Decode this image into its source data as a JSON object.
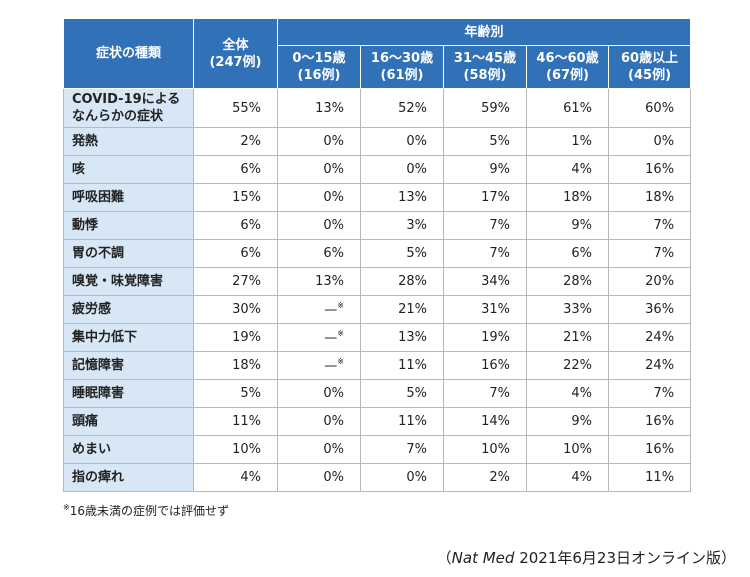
{
  "header": {
    "symptom": "症状の種類",
    "total": {
      "label": "全体",
      "count": "(247例)"
    },
    "age_group": "年齢別",
    "ages": [
      {
        "label": "0〜15歳",
        "count": "(16例)"
      },
      {
        "label": "16〜30歳",
        "count": "(61例)"
      },
      {
        "label": "31〜45歳",
        "count": "(58例)"
      },
      {
        "label": "46〜60歳",
        "count": "(67例)"
      },
      {
        "label": "60歳以上",
        "count": "(45例)"
      }
    ]
  },
  "rows": [
    {
      "symptom": "COVID-19による\nなんらかの症状",
      "values": [
        "55%",
        "13%",
        "52%",
        "59%",
        "61%",
        "60%"
      ]
    },
    {
      "symptom": "発熱",
      "values": [
        "2%",
        "0%",
        "0%",
        "5%",
        "1%",
        "0%"
      ]
    },
    {
      "symptom": "咳",
      "values": [
        "6%",
        "0%",
        "0%",
        "9%",
        "4%",
        "16%"
      ]
    },
    {
      "symptom": "呼吸困難",
      "values": [
        "15%",
        "0%",
        "13%",
        "17%",
        "18%",
        "18%"
      ]
    },
    {
      "symptom": "動悸",
      "values": [
        "6%",
        "0%",
        "3%",
        "7%",
        "9%",
        "7%"
      ]
    },
    {
      "symptom": "胃の不調",
      "values": [
        "6%",
        "6%",
        "5%",
        "7%",
        "6%",
        "7%"
      ]
    },
    {
      "symptom": "嗅覚・味覚障害",
      "values": [
        "27%",
        "13%",
        "28%",
        "34%",
        "28%",
        "20%"
      ]
    },
    {
      "symptom": "疲労感",
      "values": [
        "30%",
        {
          "text": "—",
          "mark": "※"
        },
        "21%",
        "31%",
        "33%",
        "36%"
      ]
    },
    {
      "symptom": "集中力低下",
      "values": [
        "19%",
        {
          "text": "—",
          "mark": "※"
        },
        "13%",
        "19%",
        "21%",
        "24%"
      ]
    },
    {
      "symptom": "記憶障害",
      "values": [
        "18%",
        {
          "text": "—",
          "mark": "※"
        },
        "11%",
        "16%",
        "22%",
        "24%"
      ]
    },
    {
      "symptom": "睡眠障害",
      "values": [
        "5%",
        "0%",
        "5%",
        "7%",
        "4%",
        "7%"
      ]
    },
    {
      "symptom": "頭痛",
      "values": [
        "11%",
        "0%",
        "11%",
        "14%",
        "9%",
        "16%"
      ]
    },
    {
      "symptom": "めまい",
      "values": [
        "10%",
        "0%",
        "7%",
        "10%",
        "10%",
        "16%"
      ]
    },
    {
      "symptom": "指の痺れ",
      "values": [
        "4%",
        "0%",
        "0%",
        "2%",
        "4%",
        "11%"
      ]
    }
  ],
  "footnote": {
    "mark": "※",
    "text": "16歳未満の症例では評価せず"
  },
  "source": {
    "open": "（",
    "journal": "Nat Med",
    "rest": " 2021年6月23日オンライン版）"
  }
}
